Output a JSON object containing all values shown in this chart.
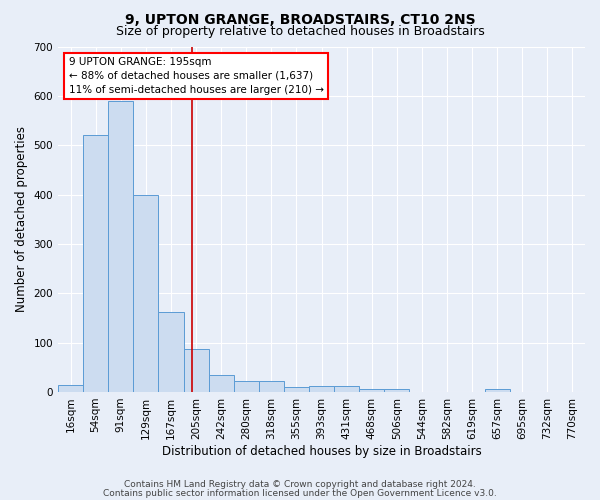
{
  "title": "9, UPTON GRANGE, BROADSTAIRS, CT10 2NS",
  "subtitle": "Size of property relative to detached houses in Broadstairs",
  "xlabel": "Distribution of detached houses by size in Broadstairs",
  "ylabel": "Number of detached properties",
  "categories": [
    "16sqm",
    "54sqm",
    "91sqm",
    "129sqm",
    "167sqm",
    "205sqm",
    "242sqm",
    "280sqm",
    "318sqm",
    "355sqm",
    "393sqm",
    "431sqm",
    "468sqm",
    "506sqm",
    "544sqm",
    "582sqm",
    "619sqm",
    "657sqm",
    "695sqm",
    "732sqm",
    "770sqm"
  ],
  "bar_heights": [
    15,
    520,
    590,
    400,
    163,
    88,
    35,
    22,
    22,
    10,
    13,
    13,
    6,
    5,
    0,
    0,
    0,
    5,
    0,
    0,
    0
  ],
  "bar_color": "#ccdcf0",
  "bar_edge_color": "#5b9bd5",
  "background_color": "#e8eef8",
  "fig_background_color": "#e8eef8",
  "grid_color": "#ffffff",
  "red_line_x": 4.82,
  "annotation_line1": "9 UPTON GRANGE: 195sqm",
  "annotation_line2": "← 88% of detached houses are smaller (1,637)",
  "annotation_line3": "11% of semi-detached houses are larger (210) →",
  "footer_line1": "Contains HM Land Registry data © Crown copyright and database right 2024.",
  "footer_line2": "Contains public sector information licensed under the Open Government Licence v3.0.",
  "ylim": [
    0,
    700
  ],
  "yticks": [
    0,
    100,
    200,
    300,
    400,
    500,
    600,
    700
  ],
  "title_fontsize": 10,
  "subtitle_fontsize": 9,
  "axis_label_fontsize": 8.5,
  "tick_fontsize": 7.5,
  "annotation_fontsize": 7.5,
  "footer_fontsize": 6.5
}
